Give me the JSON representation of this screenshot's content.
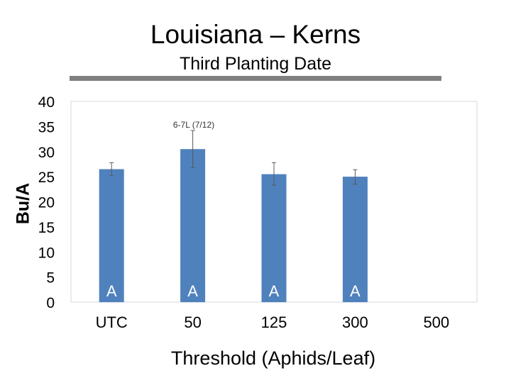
{
  "slide": {
    "title": "Louisiana – Kerns",
    "subtitle": "Third Planting Date"
  },
  "chart_data": {
    "type": "bar",
    "categories": [
      "UTC",
      "50",
      "125",
      "300",
      "500"
    ],
    "values": [
      26.5,
      30.5,
      25.5,
      25.0,
      null
    ],
    "error_bars": [
      [
        25.2,
        27.8
      ],
      [
        26.8,
        34.2
      ],
      [
        23.3,
        27.8
      ],
      [
        23.5,
        26.4
      ],
      null
    ],
    "bar_letters": [
      "A",
      "A",
      "A",
      "A",
      null
    ],
    "annotation": "6-7L (7/12)",
    "xlabel": "Threshold (Aphids/Leaf)",
    "ylabel": "Bu/A",
    "ylim": [
      0,
      40
    ],
    "yticks": [
      "0",
      "5",
      "10",
      "15",
      "20",
      "25",
      "30",
      "35",
      "40"
    ],
    "grid": false,
    "bar_color": "#4F81BD"
  }
}
